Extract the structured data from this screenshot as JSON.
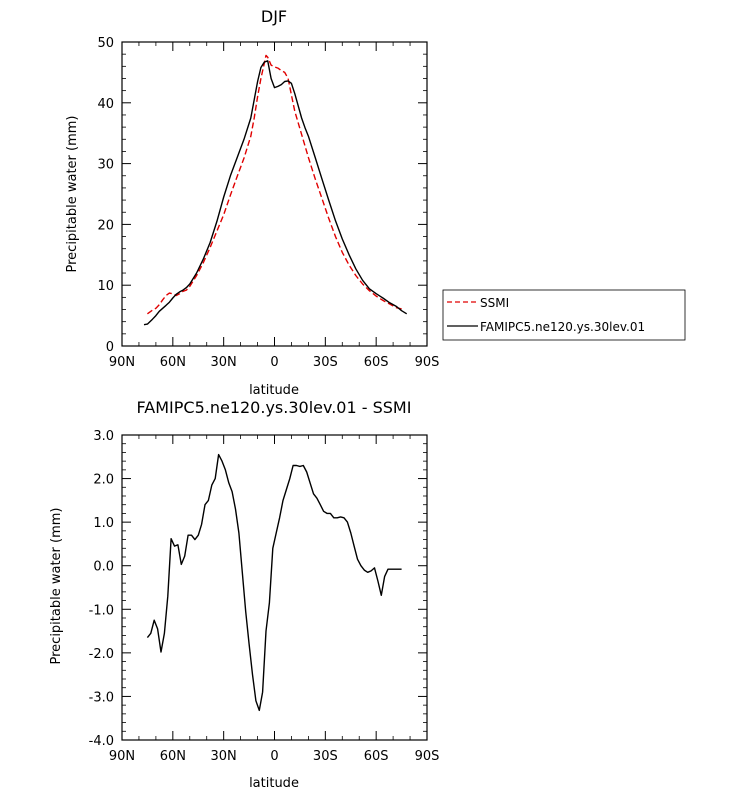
{
  "chart_data": [
    {
      "type": "line",
      "title": "DJF",
      "xlabel": "latitude",
      "ylabel": "Precipitable water (mm)",
      "xlim": [
        90,
        -90
      ],
      "ylim": [
        0,
        50
      ],
      "x_ticks": [
        90,
        60,
        30,
        0,
        -30,
        -60,
        -90
      ],
      "x_tick_labels": [
        "90N",
        "60N",
        "30N",
        "0",
        "30S",
        "60S",
        "90S"
      ],
      "y_ticks": [
        0,
        10,
        20,
        30,
        40,
        50
      ],
      "y_tick_labels": [
        "0",
        "10",
        "20",
        "30",
        "40",
        "50"
      ],
      "legend_position": "right",
      "series": [
        {
          "name": "SSMI",
          "color": "#e00000",
          "dash": "dashed",
          "x": [
            75,
            72,
            70,
            68,
            66,
            64,
            62,
            60,
            58,
            56,
            54,
            52,
            50,
            46,
            42,
            38,
            34,
            30,
            26,
            22,
            18,
            14,
            12,
            10,
            8,
            6,
            5,
            4,
            2,
            0,
            -2,
            -4,
            -6,
            -8,
            -10,
            -12,
            -16,
            -20,
            -24,
            -28,
            -32,
            -36,
            -40,
            -44,
            -48,
            -52,
            -56,
            -60,
            -64,
            -68,
            -72,
            -75
          ],
          "y": [
            5.3,
            5.9,
            6.2,
            6.8,
            7.6,
            8.3,
            8.7,
            8.6,
            8.3,
            8.6,
            9.0,
            9.2,
            9.8,
            11.6,
            13.7,
            16.2,
            18.9,
            21.6,
            24.8,
            27.9,
            30.9,
            34.5,
            37.5,
            41.0,
            44.0,
            46.5,
            47.8,
            47.5,
            46.2,
            45.9,
            45.7,
            45.3,
            45.0,
            44.0,
            41.3,
            38.6,
            34.8,
            31.0,
            27.5,
            24.3,
            21.0,
            18.0,
            15.4,
            13.3,
            11.6,
            10.2,
            9.1,
            8.2,
            7.5,
            6.9,
            6.3,
            6.1
          ]
        },
        {
          "name": "FAMIPC5.ne120.ys.30lev.01",
          "color": "#000000",
          "dash": "solid",
          "x": [
            77,
            75,
            72,
            70,
            68,
            66,
            64,
            62,
            60,
            58,
            56,
            54,
            52,
            50,
            46,
            42,
            38,
            34,
            30,
            26,
            22,
            18,
            14,
            12,
            10,
            8,
            6,
            4,
            2,
            0,
            -2,
            -4,
            -6,
            -8,
            -10,
            -12,
            -14,
            -16,
            -18,
            -20,
            -24,
            -28,
            -32,
            -36,
            -40,
            -44,
            -48,
            -52,
            -56,
            -60,
            -64,
            -68,
            -72,
            -75,
            -78
          ],
          "y": [
            3.5,
            3.6,
            4.4,
            5.0,
            5.7,
            6.2,
            6.7,
            7.2,
            7.9,
            8.5,
            8.9,
            9.2,
            9.6,
            10.2,
            12.0,
            14.3,
            17.0,
            20.5,
            24.5,
            28.0,
            31.0,
            34.0,
            37.5,
            40.5,
            43.5,
            45.8,
            46.7,
            46.9,
            44.0,
            42.5,
            42.7,
            43.0,
            43.5,
            43.6,
            43.2,
            41.5,
            39.5,
            37.5,
            35.9,
            34.5,
            31.0,
            27.5,
            24.0,
            20.6,
            17.6,
            15.0,
            12.7,
            10.8,
            9.4,
            8.6,
            7.9,
            7.1,
            6.5,
            5.8,
            5.3
          ]
        }
      ]
    },
    {
      "type": "line",
      "title": "FAMIPC5.ne120.ys.30lev.01 - SSMI",
      "xlabel": "latitude",
      "ylabel": "Precipitable water (mm)",
      "xlim": [
        90,
        -90
      ],
      "ylim": [
        -4,
        3
      ],
      "x_ticks": [
        90,
        60,
        30,
        0,
        -30,
        -60,
        -90
      ],
      "x_tick_labels": [
        "90N",
        "60N",
        "30N",
        "0",
        "30S",
        "60S",
        "90S"
      ],
      "y_ticks": [
        -4,
        -3,
        -2,
        -1,
        0,
        1,
        2,
        3
      ],
      "y_tick_labels": [
        "-4.0",
        "-3.0",
        "-2.0",
        "-1.0",
        "0.0",
        "1.0",
        "2.0",
        "3.0"
      ],
      "series": [
        {
          "color": "#000000",
          "dash": "solid",
          "x": [
            75,
            73,
            71,
            69,
            67,
            65,
            63,
            61,
            59,
            57,
            55,
            53,
            51,
            49,
            47,
            45,
            43,
            41,
            39,
            37,
            35,
            33,
            31,
            29,
            27,
            25,
            23,
            21,
            19,
            17,
            15,
            13,
            11,
            9,
            7,
            5,
            3,
            1,
            -1,
            -3,
            -5,
            -7,
            -9,
            -11,
            -13,
            -15,
            -17,
            -19,
            -21,
            -23,
            -25,
            -27,
            -29,
            -31,
            -33,
            -35,
            -37,
            -39,
            -41,
            -43,
            -45,
            -47,
            -49,
            -51,
            -53,
            -55,
            -57,
            -59,
            -61,
            -63,
            -65,
            -67,
            -69,
            -71,
            -73,
            -75
          ],
          "y": [
            -1.65,
            -1.55,
            -1.25,
            -1.45,
            -1.98,
            -1.55,
            -0.7,
            0.62,
            0.45,
            0.48,
            0.03,
            0.22,
            0.7,
            0.7,
            0.6,
            0.7,
            0.95,
            1.4,
            1.5,
            1.85,
            2.0,
            2.55,
            2.4,
            2.2,
            1.9,
            1.7,
            1.3,
            0.75,
            -0.15,
            -1.05,
            -1.8,
            -2.5,
            -3.1,
            -3.32,
            -2.9,
            -1.5,
            -0.85,
            0.4,
            0.75,
            1.1,
            1.5,
            1.75,
            2.0,
            2.3,
            2.3,
            2.28,
            2.3,
            2.15,
            1.9,
            1.65,
            1.55,
            1.4,
            1.25,
            1.2,
            1.2,
            1.1,
            1.1,
            1.12,
            1.1,
            1.0,
            0.75,
            0.45,
            0.15,
            0.0,
            -0.1,
            -0.15,
            -0.12,
            -0.05,
            -0.35,
            -0.68,
            -0.25,
            -0.08,
            -0.08,
            -0.08,
            -0.08,
            -0.08
          ]
        }
      ]
    }
  ]
}
